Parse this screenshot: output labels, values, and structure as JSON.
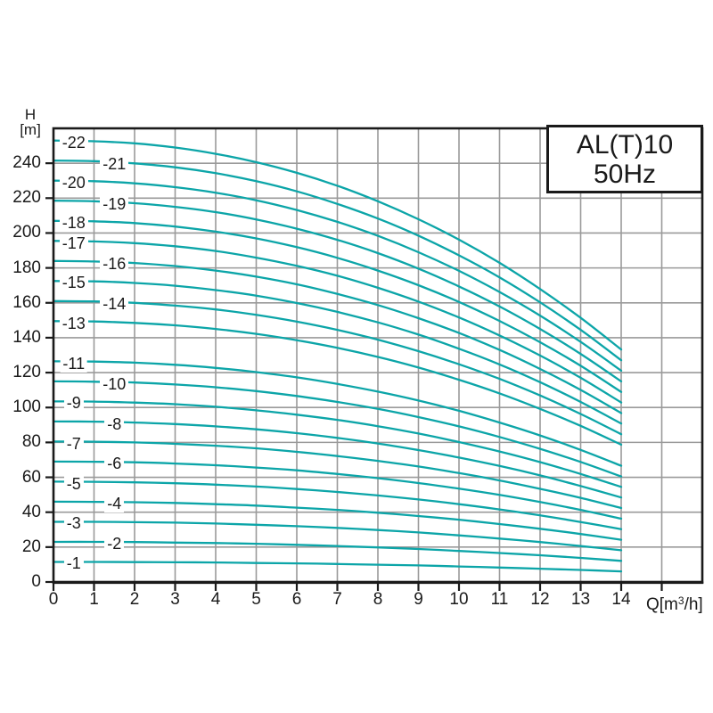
{
  "title_box": {
    "model": "AL(T)10",
    "frequency": "50Hz"
  },
  "y_axis": {
    "label_line1": "H",
    "label_line2": "[m]",
    "label_full": "H [m]",
    "ticks": [
      0,
      20,
      40,
      60,
      80,
      100,
      120,
      140,
      160,
      180,
      200,
      220,
      240
    ]
  },
  "x_axis": {
    "label_prefix": "Q[m",
    "label_sup": "3",
    "label_suffix": "/h]",
    "label_full": "Q[m³/h]",
    "ticks": [
      0,
      1,
      2,
      3,
      4,
      5,
      6,
      7,
      8,
      9,
      10,
      11,
      12,
      13,
      14
    ],
    "unlabeled_ticks": [
      15
    ]
  },
  "chart_data": {
    "type": "line",
    "title": "AL(T)10 50Hz",
    "xlabel": "Q[m³/h]",
    "ylabel": "H [m]",
    "xlim": [
      0,
      16
    ],
    "ylim": [
      0,
      260
    ],
    "grid": "on",
    "legend": "curve labels inline on curves",
    "colors": {
      "curve": "#0CA5A8",
      "grid": "#9A9A9A",
      "axis": "#1A1A1A",
      "text": "#1A1A1A"
    },
    "x": [
      0,
      1,
      2,
      3,
      4,
      5,
      6,
      7,
      8,
      9,
      10,
      11,
      12,
      13,
      14
    ],
    "series": [
      {
        "name": "-22",
        "stage": 22,
        "label_q": 0.5,
        "values": [
          253.0,
          252.6,
          251.4,
          249.0,
          245.4,
          240.6,
          234.5,
          227.1,
          218.2,
          207.9,
          196.2,
          182.9,
          167.9,
          151.4,
          133.2
        ]
      },
      {
        "name": "-21",
        "stage": 21,
        "label_q": 1.5,
        "values": [
          241.5,
          241.2,
          239.9,
          237.7,
          234.3,
          229.7,
          223.9,
          216.7,
          208.3,
          198.5,
          187.2,
          174.6,
          160.3,
          144.5,
          127.1
        ]
      },
      {
        "name": "-20",
        "stage": 20,
        "label_q": 0.5,
        "values": [
          230.0,
          229.7,
          228.5,
          226.3,
          223.1,
          218.8,
          213.2,
          206.4,
          198.4,
          189.0,
          178.3,
          166.2,
          152.7,
          137.6,
          121.1
        ]
      },
      {
        "name": "-19",
        "stage": 19,
        "label_q": 1.5,
        "values": [
          218.5,
          218.2,
          217.1,
          215.0,
          212.0,
          207.8,
          202.5,
          196.1,
          188.5,
          179.6,
          169.4,
          157.9,
          145.0,
          130.7,
          115.0
        ]
      },
      {
        "name": "-18",
        "stage": 18,
        "label_q": 0.5,
        "values": [
          207.0,
          206.7,
          205.7,
          203.7,
          200.8,
          196.9,
          191.9,
          185.8,
          178.5,
          170.1,
          160.5,
          149.6,
          137.4,
          123.9,
          108.9
        ]
      },
      {
        "name": "-17",
        "stage": 17,
        "label_q": 0.5,
        "values": [
          195.5,
          195.2,
          194.2,
          192.4,
          189.7,
          185.9,
          181.2,
          175.5,
          168.6,
          160.7,
          151.6,
          141.3,
          129.8,
          117.0,
          102.9
        ]
      },
      {
        "name": "-16",
        "stage": 16,
        "label_q": 1.5,
        "values": [
          184.0,
          183.7,
          182.8,
          181.1,
          178.5,
          175.0,
          170.6,
          165.1,
          158.7,
          151.2,
          142.7,
          133.0,
          122.1,
          110.1,
          96.8
        ]
      },
      {
        "name": "-15",
        "stage": 15,
        "label_q": 0.5,
        "values": [
          172.5,
          172.3,
          171.4,
          169.8,
          167.3,
          164.1,
          159.9,
          154.8,
          148.8,
          141.8,
          133.7,
          124.7,
          114.5,
          103.2,
          90.8
        ]
      },
      {
        "name": "-14",
        "stage": 14,
        "label_q": 1.5,
        "values": [
          161.0,
          160.8,
          160.0,
          158.4,
          156.2,
          153.1,
          149.2,
          144.5,
          138.9,
          132.3,
          124.8,
          116.4,
          106.9,
          96.3,
          84.7
        ]
      },
      {
        "name": "-13",
        "stage": 13,
        "label_q": 0.5,
        "values": [
          149.5,
          149.3,
          148.5,
          147.1,
          145.0,
          142.2,
          138.6,
          134.2,
          129.0,
          122.9,
          115.9,
          108.1,
          99.2,
          89.5,
          78.7
        ]
      },
      {
        "name": "-11",
        "stage": 11,
        "label_q": 0.5,
        "values": [
          126.5,
          126.3,
          125.7,
          124.5,
          122.7,
          120.3,
          117.3,
          113.5,
          109.1,
          104.0,
          98.1,
          91.4,
          84.0,
          75.7,
          66.6
        ]
      },
      {
        "name": "-10",
        "stage": 10,
        "label_q": 1.5,
        "values": [
          115.0,
          114.8,
          114.3,
          113.2,
          111.6,
          109.4,
          106.6,
          103.2,
          99.2,
          94.5,
          89.2,
          83.1,
          76.3,
          68.8,
          60.5
        ]
      },
      {
        "name": "-9",
        "stage": 9,
        "label_q": 0.5,
        "values": [
          103.5,
          103.4,
          102.8,
          101.9,
          100.4,
          98.4,
          95.9,
          92.9,
          89.3,
          85.1,
          80.2,
          74.8,
          68.7,
          61.9,
          54.5
        ]
      },
      {
        "name": "-8",
        "stage": 8,
        "label_q": 1.5,
        "values": [
          92.0,
          91.9,
          91.4,
          90.5,
          89.2,
          87.5,
          85.3,
          82.6,
          79.4,
          75.6,
          71.3,
          66.5,
          61.1,
          55.0,
          48.4
        ]
      },
      {
        "name": "-7",
        "stage": 7,
        "label_q": 0.5,
        "values": [
          80.5,
          80.4,
          80.0,
          79.2,
          78.1,
          76.6,
          74.6,
          72.2,
          69.4,
          66.2,
          62.4,
          58.2,
          53.4,
          48.2,
          42.4
        ]
      },
      {
        "name": "-6",
        "stage": 6,
        "label_q": 1.5,
        "values": [
          69.0,
          68.9,
          68.6,
          67.9,
          66.9,
          65.6,
          64.0,
          61.9,
          59.5,
          56.7,
          53.5,
          49.9,
          45.8,
          41.3,
          36.3
        ]
      },
      {
        "name": "-5",
        "stage": 5,
        "label_q": 0.5,
        "values": [
          57.5,
          57.4,
          57.1,
          56.6,
          55.8,
          54.7,
          53.3,
          51.6,
          49.6,
          47.3,
          44.6,
          41.6,
          38.2,
          34.4,
          30.3
        ]
      },
      {
        "name": "-4",
        "stage": 4,
        "label_q": 1.5,
        "values": [
          46.0,
          45.9,
          45.7,
          45.3,
          44.6,
          43.8,
          42.6,
          41.3,
          39.7,
          37.8,
          35.7,
          33.2,
          30.5,
          27.5,
          24.2
        ]
      },
      {
        "name": "-3",
        "stage": 3,
        "label_q": 0.5,
        "values": [
          34.5,
          34.5,
          34.3,
          34.0,
          33.5,
          32.8,
          32.0,
          31.0,
          29.8,
          28.4,
          26.7,
          24.9,
          22.9,
          20.6,
          18.2
        ]
      },
      {
        "name": "-2",
        "stage": 2,
        "label_q": 1.5,
        "values": [
          23.0,
          23.0,
          22.9,
          22.6,
          22.3,
          21.9,
          21.3,
          20.6,
          19.8,
          18.9,
          17.8,
          16.6,
          15.3,
          13.8,
          12.1
        ]
      },
      {
        "name": "-1",
        "stage": 1,
        "label_q": 0.5,
        "values": [
          11.5,
          11.5,
          11.4,
          11.3,
          11.2,
          10.9,
          10.7,
          10.3,
          9.9,
          9.5,
          8.9,
          8.3,
          7.6,
          6.9,
          6.1
        ]
      }
    ]
  }
}
